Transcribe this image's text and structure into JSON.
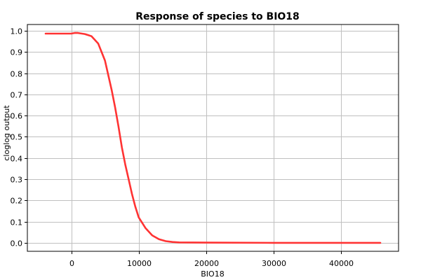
{
  "chart_data": {
    "type": "line",
    "title": "Response of species to BIO18",
    "xlabel": "BIO18",
    "ylabel": "cloglog output",
    "xlim": [
      -6500,
      48500
    ],
    "ylim": [
      -0.04,
      1.03
    ],
    "xticks": [
      0,
      10000,
      20000,
      30000,
      40000
    ],
    "xtick_labels": [
      "0",
      "10000",
      "20000",
      "30000",
      "40000"
    ],
    "yticks": [
      0.0,
      0.1,
      0.2,
      0.3,
      0.4,
      0.5,
      0.6,
      0.7,
      0.8,
      0.9,
      1.0
    ],
    "ytick_labels": [
      "0.0",
      "0.1",
      "0.2",
      "0.3",
      "0.4",
      "0.5",
      "0.6",
      "0.7",
      "0.8",
      "0.9",
      "1.0"
    ],
    "grid": true,
    "series": [
      {
        "color": "#ff3333",
        "x": [
          -3800,
          0,
          500,
          1000,
          2000,
          3000,
          4000,
          4500,
          5000,
          5500,
          6000,
          6500,
          7000,
          7500,
          8000,
          8500,
          9000,
          9500,
          10000,
          11000,
          12000,
          13000,
          14000,
          15000,
          16000,
          20000,
          30000,
          40000,
          45800
        ],
        "y": [
          0.987,
          0.987,
          0.99,
          0.99,
          0.985,
          0.975,
          0.94,
          0.9,
          0.86,
          0.79,
          0.72,
          0.64,
          0.55,
          0.45,
          0.37,
          0.3,
          0.23,
          0.17,
          0.12,
          0.07,
          0.035,
          0.017,
          0.008,
          0.004,
          0.002,
          0.001,
          0.0,
          0.0,
          0.0
        ]
      }
    ]
  }
}
